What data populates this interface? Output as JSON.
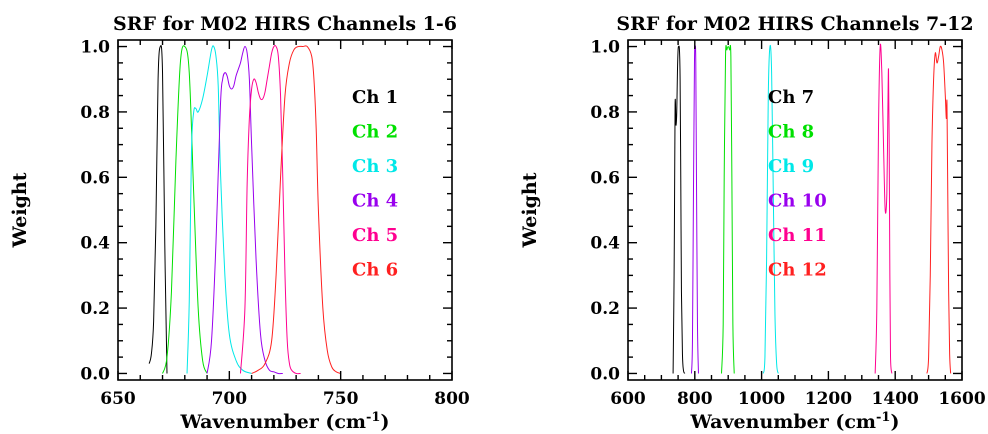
{
  "chart_data": [
    {
      "type": "line",
      "title": "SRF for M02 HIRS Channels 1-6",
      "xlabel": "Wavenumber (cm",
      "xlabel_sup": "-1",
      "xlabel_close": ")",
      "ylabel": "Weight",
      "xlim": [
        650,
        800
      ],
      "ylim": [
        0,
        1
      ],
      "xticks": [
        650,
        700,
        750,
        800
      ],
      "xtick_labels": [
        "650",
        "700",
        "750",
        "800"
      ],
      "yticks": [
        0,
        0.2,
        0.4,
        0.6,
        0.8,
        1.0
      ],
      "ytick_labels": [
        "0.0",
        "0.2",
        "0.4",
        "0.6",
        "0.8",
        "1.0"
      ],
      "legend": "inside-right",
      "series": [
        {
          "name": "Ch 1",
          "color": "#000000",
          "x": [
            664,
            665,
            666,
            667,
            668,
            669,
            670,
            671,
            672
          ],
          "y": [
            0.03,
            0.06,
            0.16,
            0.45,
            0.9,
            1.0,
            0.92,
            0.4,
            0.0
          ]
        },
        {
          "name": "Ch 2",
          "color": "#00e000",
          "x": [
            670,
            672,
            674,
            676,
            678,
            680,
            682,
            684,
            686,
            688,
            690
          ],
          "y": [
            0.0,
            0.05,
            0.25,
            0.65,
            0.95,
            1.0,
            0.92,
            0.55,
            0.2,
            0.04,
            0.0
          ]
        },
        {
          "name": "Ch 3",
          "color": "#00e8e8",
          "x": [
            681,
            682,
            683,
            684,
            685,
            686,
            688,
            690,
            692,
            693,
            694,
            695,
            696,
            698,
            700,
            703,
            706,
            710
          ],
          "y": [
            0.0,
            0.22,
            0.68,
            0.8,
            0.81,
            0.8,
            0.84,
            0.91,
            0.99,
            1.0,
            0.97,
            0.88,
            0.62,
            0.3,
            0.12,
            0.04,
            0.01,
            0.0
          ]
        },
        {
          "name": "Ch 4",
          "color": "#9900ee",
          "x": [
            690,
            692,
            694,
            696,
            697,
            698,
            699,
            700,
            701,
            702,
            703,
            704,
            705,
            706,
            707,
            708,
            709,
            710,
            712,
            714,
            716,
            718,
            720,
            722,
            724
          ],
          "y": [
            0.0,
            0.1,
            0.4,
            0.82,
            0.9,
            0.92,
            0.91,
            0.88,
            0.87,
            0.88,
            0.91,
            0.93,
            0.95,
            0.98,
            1.0,
            0.98,
            0.9,
            0.7,
            0.35,
            0.12,
            0.04,
            0.01,
            0.005,
            0.0,
            0.0
          ]
        },
        {
          "name": "Ch 5",
          "color": "#ff0090",
          "x": [
            705,
            707,
            708,
            709,
            710,
            711,
            712,
            713,
            714,
            715,
            716,
            717,
            718,
            719,
            720,
            721,
            722,
            723,
            724,
            725,
            726,
            727,
            728,
            730,
            732
          ],
          "y": [
            0.0,
            0.2,
            0.58,
            0.78,
            0.87,
            0.9,
            0.89,
            0.86,
            0.84,
            0.84,
            0.86,
            0.9,
            0.94,
            0.98,
            1.0,
            1.0,
            0.97,
            0.85,
            0.6,
            0.3,
            0.1,
            0.03,
            0.01,
            0.0,
            0.0
          ]
        },
        {
          "name": "Ch 6",
          "color": "#ff2020",
          "x": [
            710,
            713,
            716,
            719,
            721,
            723,
            725,
            727,
            729,
            731,
            733,
            735,
            737,
            738,
            739,
            740,
            742,
            744,
            746,
            748,
            750
          ],
          "y": [
            0.0,
            0.01,
            0.03,
            0.1,
            0.3,
            0.6,
            0.85,
            0.95,
            0.99,
            1.0,
            1.0,
            1.0,
            0.97,
            0.9,
            0.75,
            0.5,
            0.2,
            0.07,
            0.02,
            0.005,
            0.0
          ]
        }
      ]
    },
    {
      "type": "line",
      "title": "SRF for M02 HIRS Channels 7-12",
      "xlabel": "Wavenumber (cm",
      "xlabel_sup": "-1",
      "xlabel_close": ")",
      "ylabel": "Weight",
      "xlim": [
        600,
        1600
      ],
      "ylim": [
        0,
        1
      ],
      "xticks": [
        600,
        800,
        1000,
        1200,
        1400,
        1600
      ],
      "xtick_labels": [
        "600",
        "800",
        "1000",
        "1200",
        "1400",
        "1600"
      ],
      "yticks": [
        0,
        0.2,
        0.4,
        0.6,
        0.8,
        1.0
      ],
      "ytick_labels": [
        "0.0",
        "0.2",
        "0.4",
        "0.6",
        "0.8",
        "1.0"
      ],
      "legend": "inside-right",
      "series": [
        {
          "name": "Ch 7",
          "color": "#000000",
          "x": [
            735,
            738,
            740,
            741,
            742,
            743,
            744,
            746,
            748,
            750,
            752,
            754,
            756,
            758,
            760,
            763,
            766,
            770
          ],
          "y": [
            0.0,
            0.3,
            0.65,
            0.82,
            0.83,
            0.78,
            0.76,
            0.8,
            0.92,
            0.99,
            1.0,
            0.99,
            0.9,
            0.6,
            0.25,
            0.06,
            0.01,
            0.0
          ]
        },
        {
          "name": "Ch 8",
          "color": "#00e000",
          "x": [
            880,
            885,
            888,
            892,
            896,
            900,
            904,
            908,
            911,
            914,
            918
          ],
          "y": [
            0.0,
            0.15,
            0.6,
            0.97,
            0.99,
            1.0,
            0.99,
            0.97,
            0.6,
            0.15,
            0.0
          ]
        },
        {
          "name": "Ch 9",
          "color": "#00e8e8",
          "x": [
            1005,
            1010,
            1015,
            1020,
            1025,
            1030,
            1035,
            1040,
            1045,
            1050
          ],
          "y": [
            0.0,
            0.05,
            0.35,
            0.85,
            1.0,
            0.92,
            0.55,
            0.18,
            0.03,
            0.0
          ]
        },
        {
          "name": "Ch 10",
          "color": "#9900ee",
          "x": [
            790,
            793,
            796,
            799,
            801,
            803,
            805,
            808,
            811
          ],
          "y": [
            0.0,
            0.1,
            0.55,
            0.95,
            1.0,
            0.95,
            0.6,
            0.15,
            0.0
          ]
        },
        {
          "name": "Ch 11",
          "color": "#ff0090",
          "x": [
            1340,
            1345,
            1350,
            1355,
            1360,
            1365,
            1370,
            1375,
            1378,
            1380,
            1382,
            1384,
            1386,
            1390
          ],
          "y": [
            0.0,
            0.2,
            0.75,
            1.0,
            0.92,
            0.7,
            0.5,
            0.55,
            0.8,
            0.93,
            0.7,
            0.3,
            0.05,
            0.0
          ]
        },
        {
          "name": "Ch 12",
          "color": "#ff2020",
          "x": [
            1495,
            1500,
            1505,
            1510,
            1515,
            1520,
            1525,
            1530,
            1535,
            1540,
            1545,
            1550,
            1553,
            1555,
            1557,
            1560,
            1563,
            1566
          ],
          "y": [
            0.0,
            0.05,
            0.3,
            0.7,
            0.9,
            0.98,
            0.95,
            0.97,
            1.0,
            0.99,
            0.95,
            0.85,
            0.78,
            0.83,
            0.6,
            0.25,
            0.06,
            0.0
          ]
        }
      ]
    }
  ]
}
